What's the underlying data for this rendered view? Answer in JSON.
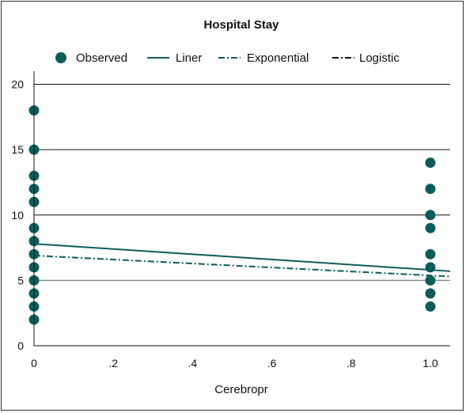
{
  "chart_data": {
    "type": "scatter",
    "title": "Hospital Stay",
    "xlabel": "Cerebropr",
    "ylabel": "",
    "xlim": [
      0,
      1.05
    ],
    "ylim": [
      0,
      21
    ],
    "x_ticks": [
      0,
      0.2,
      0.4,
      0.6,
      0.8,
      1.0
    ],
    "x_tick_labels": [
      "0",
      ".2",
      ".4",
      ".6",
      ".8",
      "1.0"
    ],
    "y_ticks": [
      0,
      5,
      10,
      15,
      20
    ],
    "y_tick_labels": [
      "0",
      "5",
      "10",
      "15",
      "20"
    ],
    "grid": "horizontal",
    "legend_position": "top",
    "colors": {
      "observed": "#0d5c5c",
      "liner": "#0d5c5c",
      "exponential": "#0d5c5c",
      "logistic": "#111111",
      "grid": "#111111",
      "ref_line": "#888888"
    },
    "reference_line_y": 5,
    "series": [
      {
        "name": "Observed",
        "kind": "points",
        "points": [
          [
            0,
            18
          ],
          [
            0,
            15
          ],
          [
            0,
            13
          ],
          [
            0,
            12
          ],
          [
            0,
            11
          ],
          [
            0,
            9
          ],
          [
            0,
            8
          ],
          [
            0,
            7
          ],
          [
            0,
            6
          ],
          [
            0,
            5
          ],
          [
            0,
            4
          ],
          [
            0,
            3
          ],
          [
            0,
            2
          ],
          [
            1,
            14
          ],
          [
            1,
            12
          ],
          [
            1,
            10
          ],
          [
            1,
            9
          ],
          [
            1,
            7
          ],
          [
            1,
            6
          ],
          [
            1,
            5
          ],
          [
            1,
            4
          ],
          [
            1,
            3
          ]
        ]
      },
      {
        "name": "Liner",
        "kind": "line",
        "style": "solid",
        "points": [
          [
            0,
            7.8
          ],
          [
            1.05,
            5.7
          ]
        ]
      },
      {
        "name": "Exponential",
        "kind": "line",
        "style": "dashdot",
        "points": [
          [
            0,
            6.9
          ],
          [
            1.05,
            5.3
          ]
        ]
      },
      {
        "name": "Logistic",
        "kind": "line",
        "style": "dashdot",
        "points": [],
        "legend_only": true
      }
    ]
  }
}
